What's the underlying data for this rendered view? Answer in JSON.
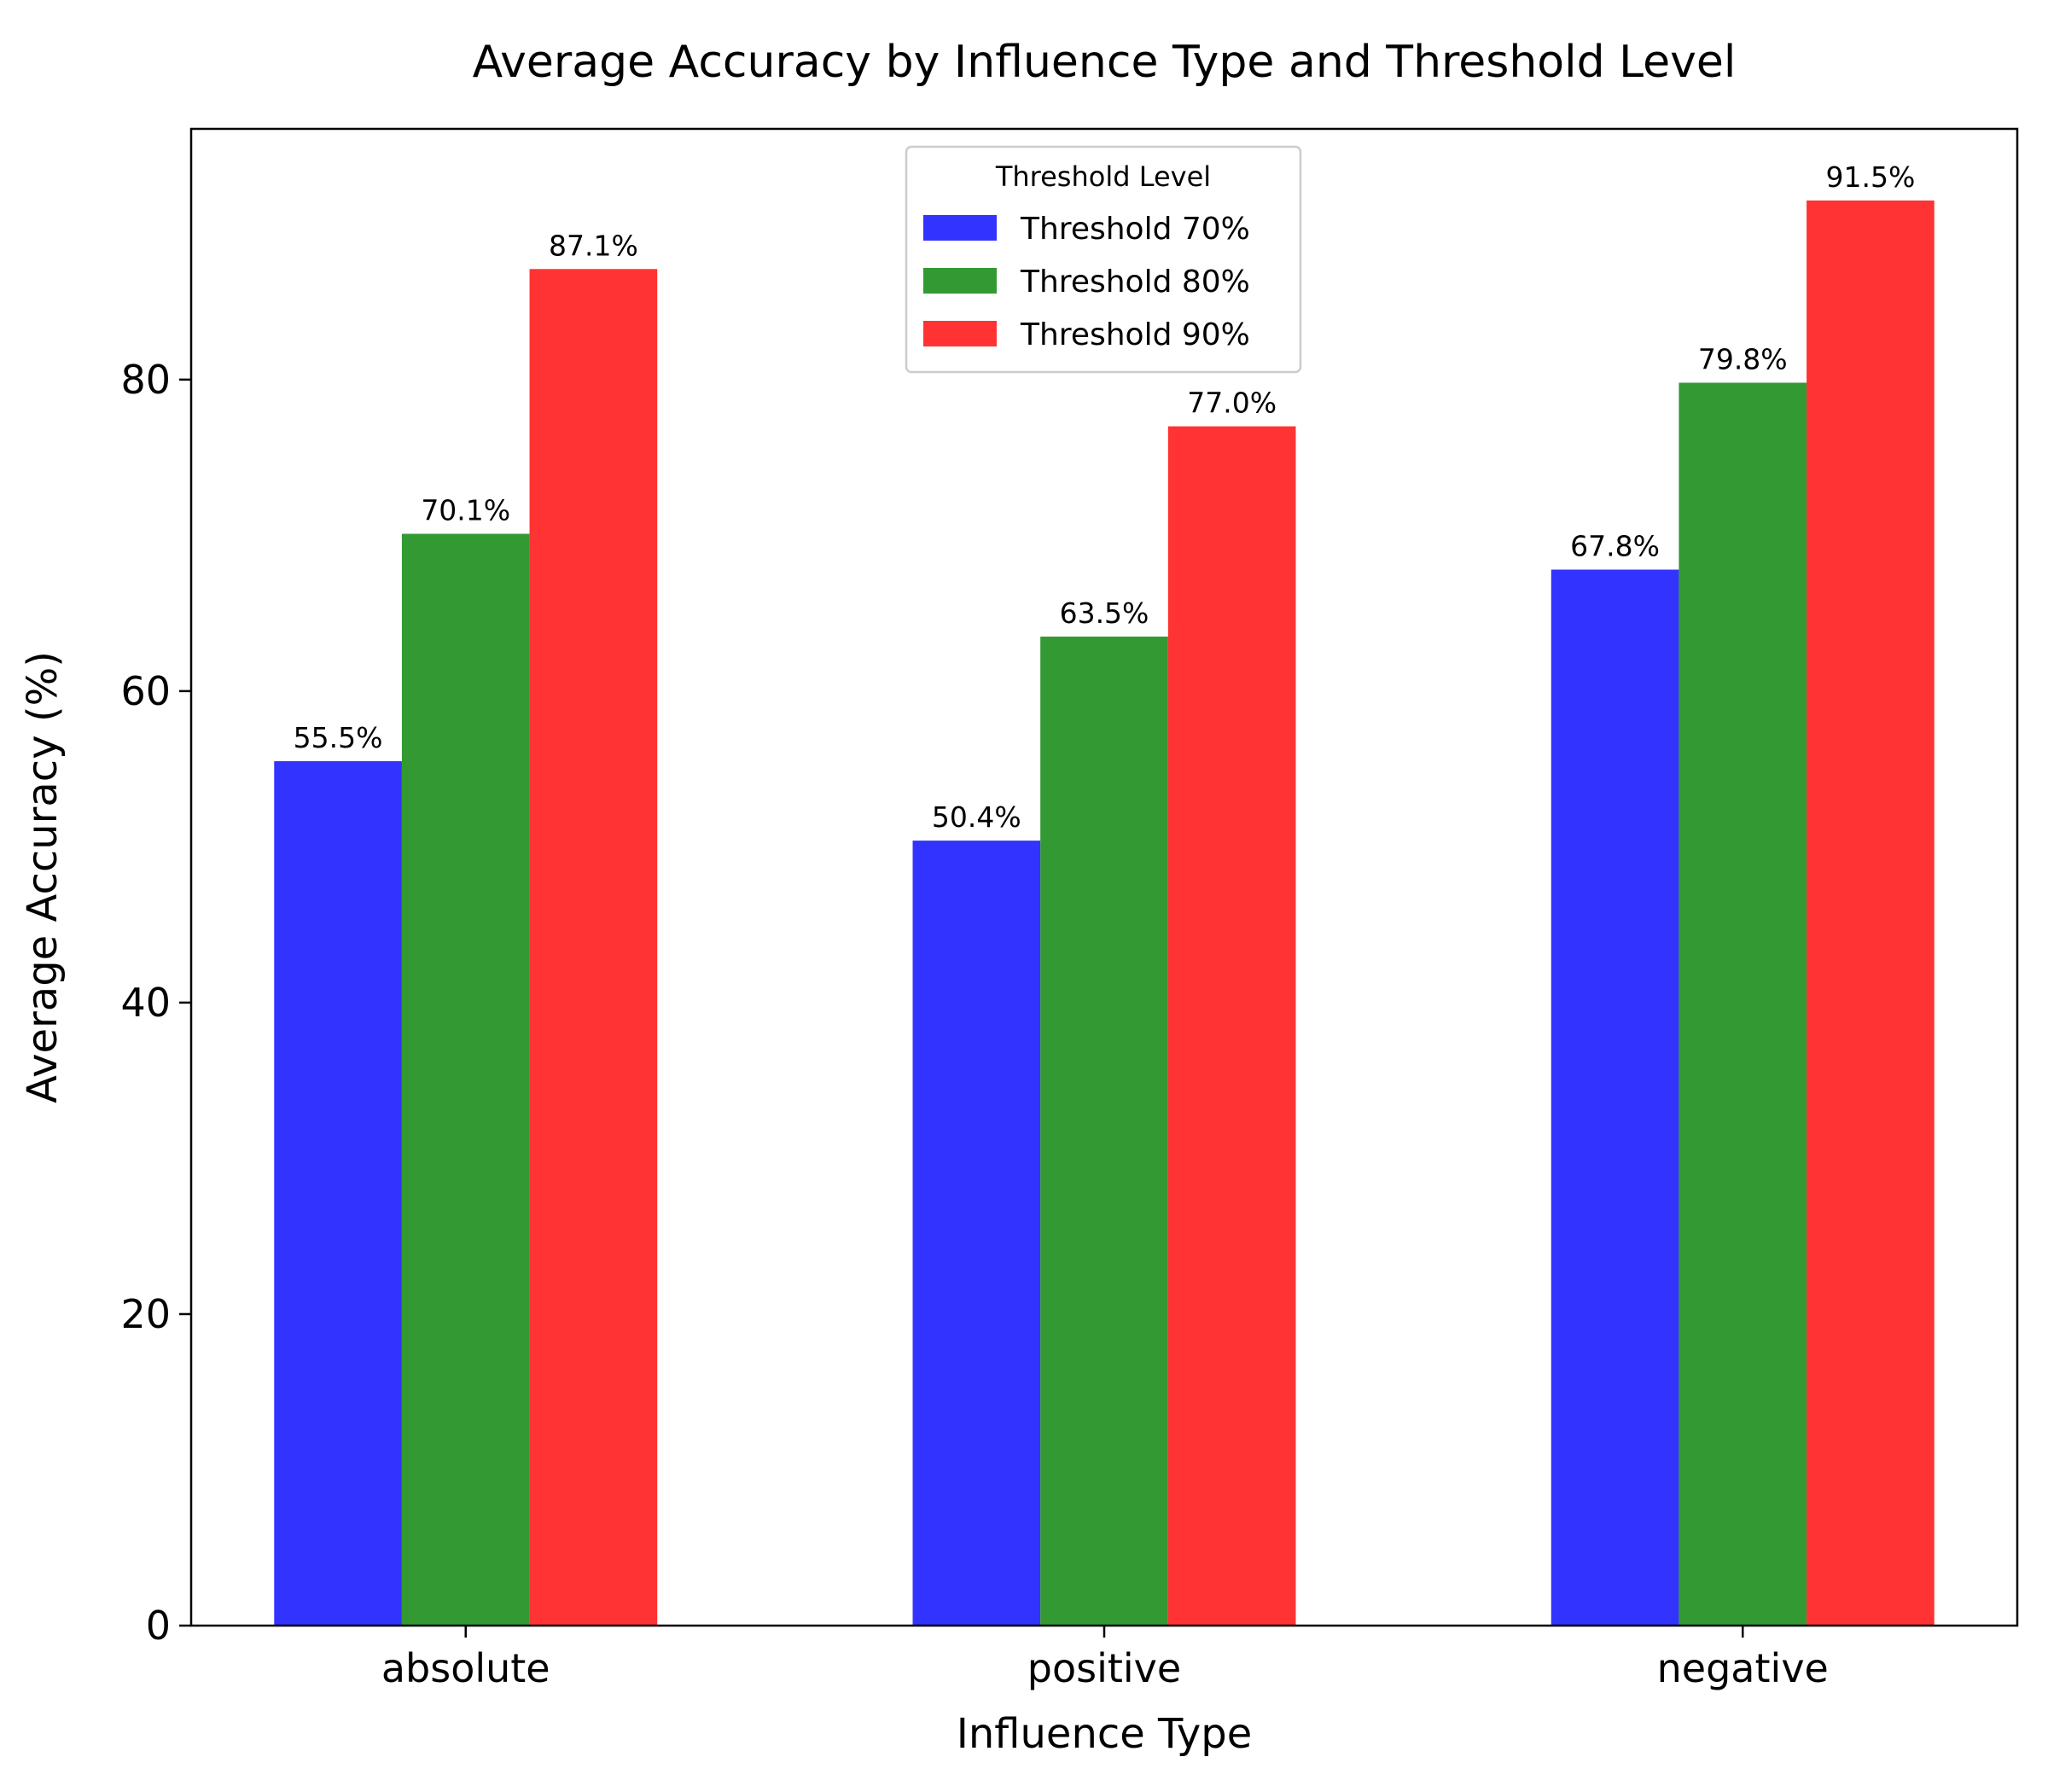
{
  "chart_data": {
    "type": "bar",
    "title": "Average Accuracy by Influence Type and Threshold Level",
    "xlabel": "Influence Type",
    "ylabel": "Average Accuracy (%)",
    "categories": [
      "absolute",
      "positive",
      "negative"
    ],
    "series": [
      {
        "name": "Threshold 70%",
        "values": [
          55.5,
          50.4,
          67.8
        ],
        "labels": [
          "55.5%",
          "50.4%",
          "67.8%"
        ],
        "color": "#3333ff"
      },
      {
        "name": "Threshold 80%",
        "values": [
          70.1,
          63.5,
          79.8
        ],
        "labels": [
          "70.1%",
          "63.5%",
          "79.8%"
        ],
        "color": "#339933"
      },
      {
        "name": "Threshold 90%",
        "values": [
          87.1,
          77.0,
          91.5
        ],
        "labels": [
          "87.1%",
          "77.0%",
          "91.5%"
        ],
        "color": "#ff3333"
      }
    ],
    "ylim": [
      0,
      96.1
    ],
    "yticks": [
      0,
      20,
      40,
      60,
      80
    ],
    "ytick_labels": [
      "0",
      "20",
      "40",
      "60",
      "80"
    ],
    "legend": {
      "title": "Threshold Level",
      "placement": "top-center"
    },
    "grid": false
  }
}
